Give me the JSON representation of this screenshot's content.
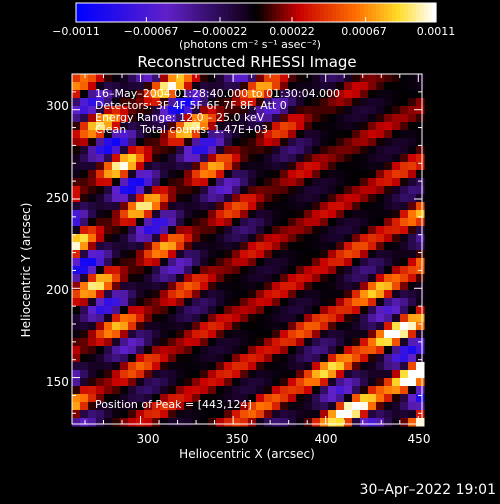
{
  "colorbar": {
    "tick_labels": [
      "−0.0011",
      "−0.00067",
      "−0.00022",
      "0.00022",
      "0.00067",
      "0.0011"
    ],
    "units_label": "(photons cm⁻² s⁻¹ asec⁻²)"
  },
  "info": {
    "time": "16–May–2004 01:28:40.000 to 01:30:04.000",
    "detectors": "Detectors: 3F 4F 5F 6F 7F 8F, Att 0",
    "energy": "Energy Range: 12.0 – 25.0 keV",
    "clean": "Clean    Total counts: 1.47E+03",
    "peak": "Position of Peak = [443,124]"
  },
  "footer": {
    "date": "30–Apr–2022 19:01"
  },
  "colors": {
    "background": "#000000",
    "text": "#ffffff"
  },
  "chart_data": {
    "type": "heatmap",
    "title": "Reconstructed RHESSI Image",
    "xlabel": "Heliocentric X (arcsec)",
    "ylabel": "Heliocentric Y (arcsec)",
    "xlim": [
      263,
      452
    ],
    "ylim": [
      124,
      320
    ],
    "x_ticks": [
      300,
      350,
      400,
      450
    ],
    "y_ticks": [
      150,
      200,
      250,
      300
    ],
    "colorbar_range": [
      -0.0011,
      0.0011
    ],
    "colorbar_ticks": [
      -0.0011,
      -0.00067,
      -0.00022,
      0.00022,
      0.00067,
      0.0011
    ],
    "pattern": "diagonal fringe stripes running from upper-left to lower-right",
    "peak": [
      443,
      124
    ]
  }
}
